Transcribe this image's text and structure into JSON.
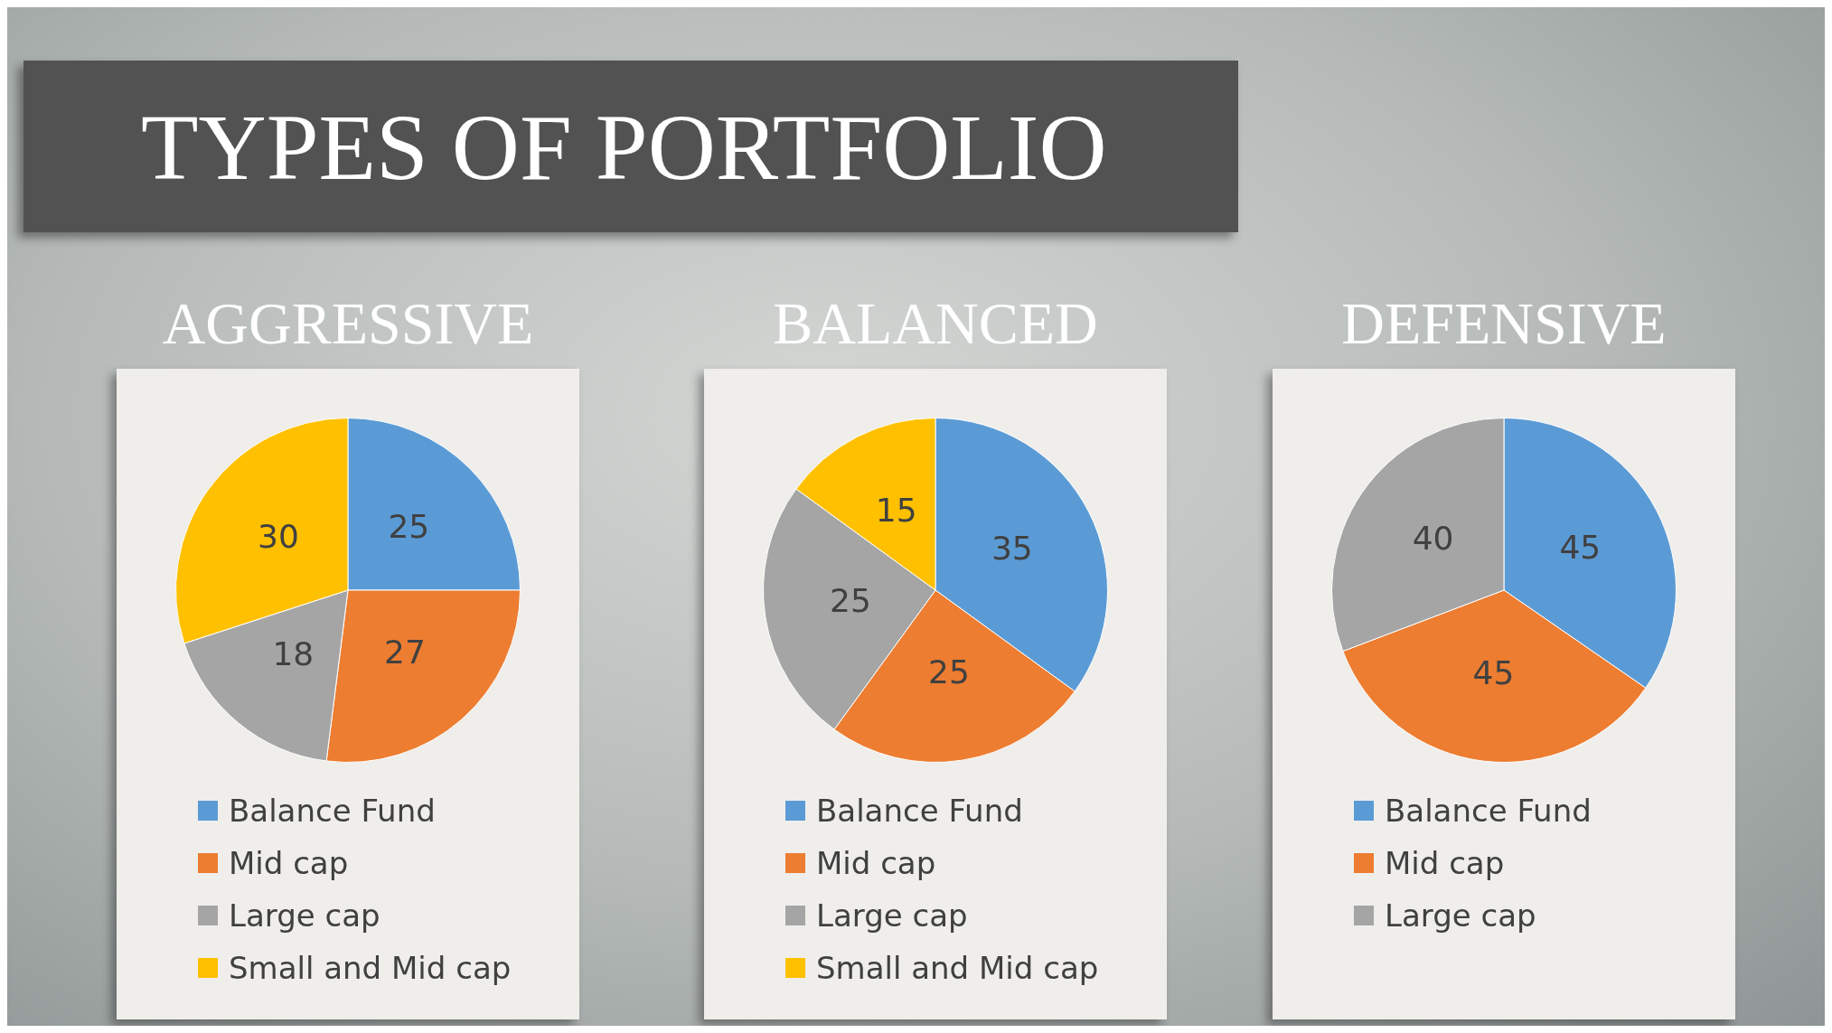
{
  "chart_data": [
    {
      "type": "pie",
      "title": "AGGRESSIVE",
      "annotations": [
        "TYPES OF PORTFOLIO"
      ],
      "categories": [
        "Balance Fund",
        "Mid cap",
        "Large cap",
        "Small and Mid cap"
      ],
      "values": [
        25,
        27,
        18,
        30
      ],
      "colors": [
        "#5b9bd5",
        "#ed7d31",
        "#a5a5a5",
        "#ffc000"
      ],
      "data_labels": true,
      "legend": "bottom"
    },
    {
      "type": "pie",
      "title": "BALANCED",
      "categories": [
        "Balance Fund",
        "Mid cap",
        "Large cap",
        "Small and Mid cap"
      ],
      "values": [
        35,
        25,
        25,
        15
      ],
      "colors": [
        "#5b9bd5",
        "#ed7d31",
        "#a5a5a5",
        "#ffc000"
      ],
      "data_labels": true,
      "legend": "bottom"
    },
    {
      "type": "pie",
      "title": "DEFENSIVE",
      "categories": [
        "Balance Fund",
        "Mid cap",
        "Large cap"
      ],
      "values": [
        45,
        45,
        40
      ],
      "colors": [
        "#5b9bd5",
        "#ed7d31",
        "#a5a5a5"
      ],
      "data_labels": true,
      "legend": "bottom"
    }
  ]
}
